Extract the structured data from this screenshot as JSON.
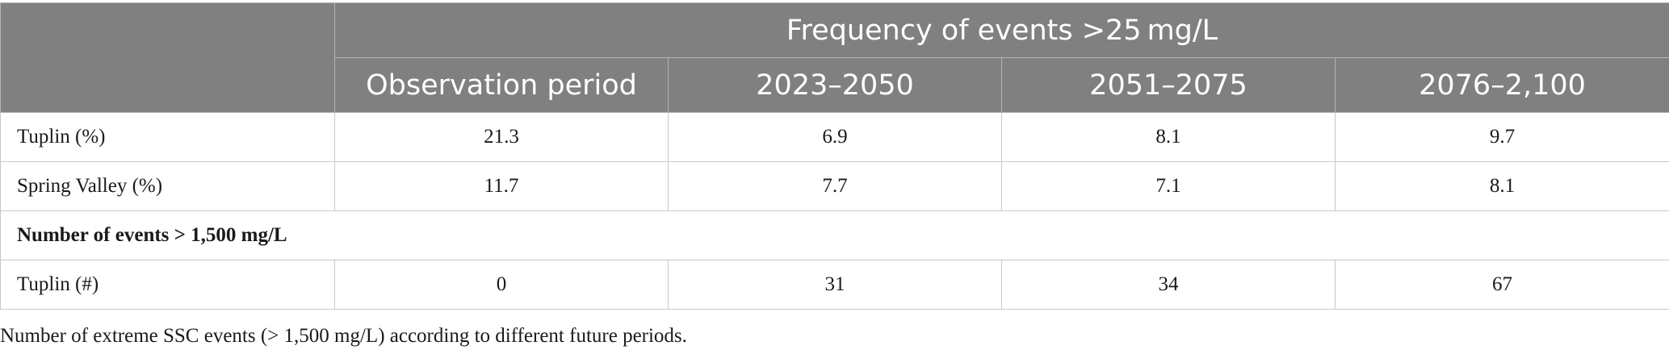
{
  "header": {
    "group_title": "Frequency of events >25 mg/L",
    "columns": [
      "Observation period",
      "2023–2050",
      "2051–2075",
      "2076–2,100"
    ]
  },
  "rows": [
    {
      "label": "Tuplin (%)",
      "values": [
        "21.3",
        "6.9",
        "8.1",
        "9.7"
      ]
    },
    {
      "label": "Spring Valley (%)",
      "values": [
        "11.7",
        "7.7",
        "7.1",
        "8.1"
      ]
    }
  ],
  "section": {
    "label": "Number of events > 1,500 mg/L"
  },
  "section_rows": [
    {
      "label": "Tuplin (#)",
      "values": [
        "0",
        "31",
        "34",
        "67"
      ]
    }
  ],
  "caption": "Number of extreme SSC events (> 1,500 mg/L) according to different future periods."
}
